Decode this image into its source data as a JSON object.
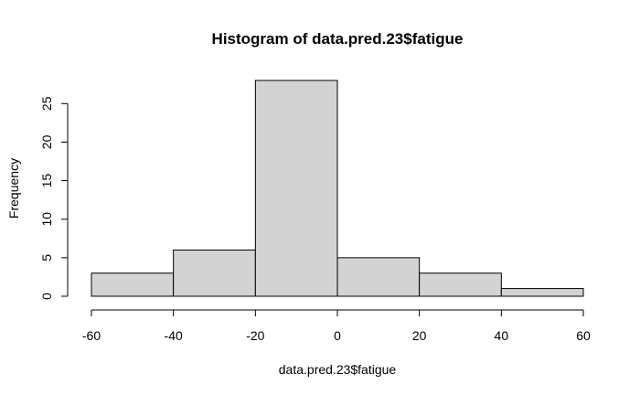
{
  "chart_data": {
    "type": "bar",
    "title": "Histogram of data.pred.23$fatigue",
    "xlabel": "data.pred.23$fatigue",
    "ylabel": "Frequency",
    "bins": [
      {
        "from": -60,
        "to": -40,
        "value": 3
      },
      {
        "from": -40,
        "to": -20,
        "value": 6
      },
      {
        "from": -20,
        "to": 0,
        "value": 28
      },
      {
        "from": 0,
        "to": 20,
        "value": 5
      },
      {
        "from": 20,
        "to": 40,
        "value": 3
      },
      {
        "from": 40,
        "to": 60,
        "value": 1
      }
    ],
    "xlim": [
      -60,
      60
    ],
    "ylim": [
      0,
      28
    ],
    "xticks": [
      -60,
      -40,
      -20,
      0,
      20,
      40,
      60
    ],
    "yticks": [
      0,
      5,
      10,
      15,
      20,
      25
    ],
    "grid": false,
    "colors": {
      "bar_fill": "#d3d3d3",
      "bar_stroke": "#000000"
    }
  }
}
